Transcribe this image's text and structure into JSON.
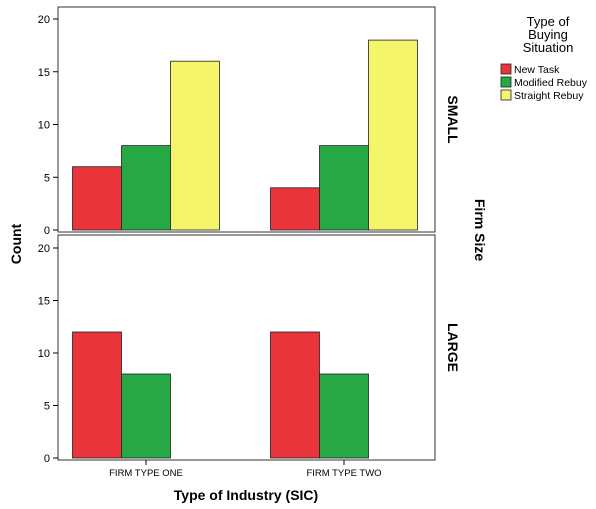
{
  "chart_data": {
    "type": "bar",
    "xlabel": "Type of Industry (SIC)",
    "ylabel": "Count",
    "facet_label": "Firm Size",
    "categories": [
      "FIRM TYPE ONE",
      "FIRM TYPE TWO"
    ],
    "ylim": [
      0,
      20
    ],
    "yticks": [
      0,
      5,
      10,
      15,
      20
    ],
    "legend": {
      "title_lines": [
        "Type of",
        "Buying",
        "Situation"
      ],
      "placement": "top-right"
    },
    "series_colors": {
      "New Task": "#e8343a",
      "Modified Rebuy": "#27a844",
      "Straight Rebuy": "#f5f56c"
    },
    "panels": [
      {
        "label": "SMALL",
        "series": [
          {
            "name": "New Task",
            "values": [
              6,
              4
            ]
          },
          {
            "name": "Modified Rebuy",
            "values": [
              8,
              8
            ]
          },
          {
            "name": "Straight Rebuy",
            "values": [
              16,
              18
            ]
          }
        ]
      },
      {
        "label": "LARGE",
        "series": [
          {
            "name": "New Task",
            "values": [
              12,
              12
            ]
          },
          {
            "name": "Modified Rebuy",
            "values": [
              8,
              8
            ]
          },
          {
            "name": "Straight Rebuy",
            "values": [
              0,
              0
            ]
          }
        ]
      }
    ]
  }
}
